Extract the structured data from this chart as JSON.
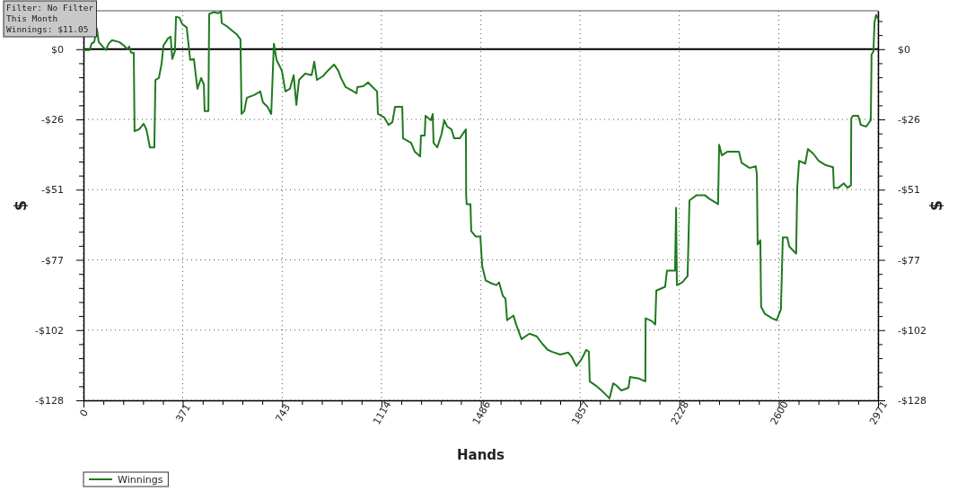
{
  "chart_data": {
    "type": "step",
    "xlabel": "Hands",
    "ylabel": "$",
    "y2label": "$",
    "annotations": [
      "Filter: No Filter",
      "This Month",
      "Winnings: $11.05"
    ],
    "legend": "bottom left",
    "grid": true,
    "line_style": "solid",
    "xlim": [
      0,
      2971
    ],
    "xticks": [
      0,
      {
        "value": 74.3,
        "label": null
      },
      {
        "value": 148.6,
        "label": null
      },
      {
        "value": 222.8,
        "label": null
      },
      {
        "value": 297.1,
        "label": null
      },
      371,
      {
        "value": 445.6,
        "label": null
      },
      {
        "value": 519.9,
        "label": null
      },
      {
        "value": 594.2,
        "label": null
      },
      {
        "value": 668.5,
        "label": null
      },
      743,
      {
        "value": 817.0,
        "label": null
      },
      {
        "value": 891.3,
        "label": null
      },
      {
        "value": 965.6,
        "label": null
      },
      {
        "value": 1039.9,
        "label": null
      },
      1114,
      {
        "value": 1188.4,
        "label": null
      },
      {
        "value": 1262.7,
        "label": null
      },
      {
        "value": 1337.0,
        "label": null
      },
      {
        "value": 1411.2,
        "label": null
      },
      1486,
      {
        "value": 1559.8,
        "label": null
      },
      {
        "value": 1634.1,
        "label": null
      },
      {
        "value": 1708.3,
        "label": null
      },
      {
        "value": 1782.6,
        "label": null
      },
      1857,
      {
        "value": 1931.2,
        "label": null
      },
      {
        "value": 2005.4,
        "label": null
      },
      {
        "value": 2079.7,
        "label": null
      },
      {
        "value": 2154.0,
        "label": null
      },
      2228,
      {
        "value": 2302.6,
        "label": null
      },
      {
        "value": 2376.8,
        "label": null
      },
      {
        "value": 2451.1,
        "label": null
      },
      {
        "value": 2525.4,
        "label": null
      },
      2600,
      {
        "value": 2674.0,
        "label": null
      },
      {
        "value": 2748.2,
        "label": null
      },
      {
        "value": 2822.5,
        "label": null
      },
      {
        "value": 2896.8,
        "label": null
      },
      2971
    ],
    "ylim": [
      -128,
      14
    ],
    "yticks": [
      {
        "value": 10.24,
        "label": null
      },
      {
        "value": 5.12,
        "label": null
      },
      {
        "value": 0,
        "label": "$0"
      },
      {
        "value": -5.12,
        "label": null
      },
      {
        "value": -10.24,
        "label": null
      },
      {
        "value": -15.36,
        "label": null
      },
      {
        "value": -20.48,
        "label": null
      },
      {
        "value": -25.6,
        "label": "-$26"
      },
      {
        "value": -30.72,
        "label": null
      },
      {
        "value": -35.84,
        "label": null
      },
      {
        "value": -40.96,
        "label": null
      },
      {
        "value": -46.08,
        "label": null
      },
      {
        "value": -51.2,
        "label": "-$51"
      },
      {
        "value": -56.32,
        "label": null
      },
      {
        "value": -61.44,
        "label": null
      },
      {
        "value": -66.56,
        "label": null
      },
      {
        "value": -71.68,
        "label": null
      },
      {
        "value": -76.8,
        "label": "-$77"
      },
      {
        "value": -81.92,
        "label": null
      },
      {
        "value": -87.04,
        "label": null
      },
      {
        "value": -92.16,
        "label": null
      },
      {
        "value": -97.28,
        "label": null
      },
      {
        "value": -102.4,
        "label": "-$102"
      },
      {
        "value": -107.52,
        "label": null
      },
      {
        "value": -112.64,
        "label": null
      },
      {
        "value": -117.76,
        "label": null
      },
      {
        "value": -122.88,
        "label": null
      },
      {
        "value": -128,
        "label": "-$128"
      }
    ],
    "y2lim": [
      -128,
      14
    ],
    "y2ticks": [
      {
        "value": 10.24,
        "label": null
      },
      {
        "value": 5.12,
        "label": null
      },
      {
        "value": 0,
        "label": "$0"
      },
      {
        "value": -5.12,
        "label": null
      },
      {
        "value": -10.24,
        "label": null
      },
      {
        "value": -15.36,
        "label": null
      },
      {
        "value": -20.48,
        "label": null
      },
      {
        "value": -25.6,
        "label": "-$26"
      },
      {
        "value": -30.72,
        "label": null
      },
      {
        "value": -35.84,
        "label": null
      },
      {
        "value": -40.96,
        "label": null
      },
      {
        "value": -46.08,
        "label": null
      },
      {
        "value": -51.2,
        "label": "-$51"
      },
      {
        "value": -56.32,
        "label": null
      },
      {
        "value": -61.44,
        "label": null
      },
      {
        "value": -66.56,
        "label": null
      },
      {
        "value": -71.68,
        "label": null
      },
      {
        "value": -76.8,
        "label": "-$77"
      },
      {
        "value": -81.92,
        "label": null
      },
      {
        "value": -87.04,
        "label": null
      },
      {
        "value": -92.16,
        "label": null
      },
      {
        "value": -97.28,
        "label": null
      },
      {
        "value": -102.4,
        "label": "-$102"
      },
      {
        "value": -107.52,
        "label": null
      },
      {
        "value": -112.64,
        "label": null
      },
      {
        "value": -117.76,
        "label": null
      },
      {
        "value": -122.88,
        "label": null
      },
      {
        "value": -128,
        "label": "-$128"
      }
    ],
    "ref_lines": [
      {
        "axis": "y",
        "value": 0,
        "color": "#000000",
        "line_style": "solid"
      }
    ],
    "series": [
      {
        "name": "Winnings",
        "color": "#1f7a1f",
        "x": [
          0,
          23,
          30,
          40,
          50,
          57,
          74,
          84,
          94,
          107,
          134,
          151,
          164,
          171,
          178,
          188,
          191,
          208,
          225,
          235,
          242,
          248,
          265,
          269,
          282,
          292,
          299,
          316,
          326,
          332,
          342,
          346,
          359,
          369,
          386,
          399,
          413,
          420,
          426,
          440,
          450,
          453,
          467,
          470,
          487,
          504,
          514,
          517,
          534,
          554,
          574,
          587,
          591,
          601,
          611,
          638,
          661,
          671,
          688,
          702,
          712,
          722,
          742,
          755,
          772,
          786,
          796,
          806,
          829,
          853,
          863,
          873,
          896,
          913,
          937,
          953,
          963,
          980,
          1004,
          1021,
          1024,
          1047,
          1064,
          1081,
          1098,
          1101,
          1125,
          1141,
          1155,
          1165,
          1192,
          1195,
          1225,
          1239,
          1259,
          1262,
          1276,
          1279,
          1299,
          1306,
          1309,
          1323,
          1339,
          1349,
          1360,
          1376,
          1386,
          1407,
          1430,
          1431,
          1433,
          1447,
          1450,
          1467,
          1484,
          1491,
          1504,
          1524,
          1544,
          1554,
          1568,
          1578,
          1584,
          1608,
          1618,
          1638,
          1652,
          1668,
          1695,
          1715,
          1736,
          1752,
          1783,
          1813,
          1826,
          1843,
          1863,
          1880,
          1890,
          1893,
          1917,
          1937,
          1954,
          1967,
          1981,
          1994,
          2011,
          2038,
          2044,
          2078,
          2101,
          2102,
          2125,
          2138,
          2142,
          2175,
          2182,
          2212,
          2216,
          2219,
          2239,
          2259,
          2266,
          2293,
          2323,
          2340,
          2373,
          2377,
          2387,
          2407,
          2451,
          2461,
          2491,
          2514,
          2518,
          2521,
          2531,
          2534,
          2548,
          2575,
          2592,
          2608,
          2615,
          2632,
          2639,
          2655,
          2665,
          2669,
          2676,
          2699,
          2709,
          2729,
          2749,
          2776,
          2803,
          2806,
          2823,
          2843,
          2857,
          2870,
          2871,
          2877,
          2897,
          2907,
          2927,
          2944,
          2947,
          2954,
          2958,
          2964,
          2971
        ],
        "values": [
          -0.3,
          -0.3,
          2.0,
          2.6,
          7.5,
          2.6,
          0.7,
          -0.3,
          2.0,
          3.3,
          2.6,
          1.3,
          0,
          1.0,
          -1.3,
          -1.3,
          -29.9,
          -29.2,
          -27.2,
          -29.2,
          -32.5,
          -35.8,
          -35.8,
          -11.2,
          -10.5,
          -5.3,
          1.3,
          3.9,
          4.6,
          -3.6,
          -0.7,
          11.8,
          11.5,
          9.2,
          7.9,
          -3.9,
          -3.6,
          -9.5,
          -14.4,
          -10.5,
          -12.8,
          -22.6,
          -22.6,
          12.8,
          13.5,
          13.1,
          13.8,
          9.5,
          8.5,
          6.9,
          5.3,
          3.6,
          -23.6,
          -22.6,
          -17.7,
          -16.7,
          -15.4,
          -19.4,
          -21.0,
          -23.6,
          2.0,
          -3.9,
          -7.9,
          -15.4,
          -14.4,
          -9.5,
          -20.3,
          -11.2,
          -8.9,
          -9.5,
          -4.6,
          -11.2,
          -9.8,
          -7.9,
          -5.6,
          -7.9,
          -10.5,
          -13.8,
          -15.1,
          -16.1,
          -13.8,
          -13.5,
          -12.1,
          -13.8,
          -15.4,
          -23.6,
          -24.9,
          -27.6,
          -26.6,
          -21.0,
          -21.0,
          -32.5,
          -34.1,
          -37.4,
          -39.1,
          -31.5,
          -31.5,
          -24.3,
          -25.9,
          -23.6,
          -34.1,
          -35.8,
          -30.9,
          -25.9,
          -28.2,
          -29.2,
          -32.5,
          -32.5,
          -29.2,
          -53.8,
          -56.5,
          -56.5,
          -66.3,
          -68.3,
          -68.3,
          -79.1,
          -84.3,
          -85.3,
          -86.0,
          -85.0,
          -89.9,
          -90.9,
          -98.8,
          -97.1,
          -100.4,
          -105.7,
          -104.7,
          -103.7,
          -104.7,
          -107.3,
          -109.6,
          -110.3,
          -111.3,
          -110.6,
          -112.2,
          -115.5,
          -112.9,
          -109.6,
          -110.3,
          -121.1,
          -122.7,
          -124.4,
          -126.0,
          -127.3,
          -121.8,
          -122.7,
          -124.4,
          -123.4,
          -119.5,
          -120.1,
          -121.1,
          -98.1,
          -99.1,
          -100.4,
          -88.0,
          -86.6,
          -80.7,
          -80.7,
          -57.8,
          -86.0,
          -85.0,
          -82.7,
          -55.1,
          -53.2,
          -53.2,
          -54.5,
          -56.5,
          -34.8,
          -38.7,
          -37.4,
          -37.4,
          -41.4,
          -43.3,
          -42.7,
          -45.6,
          -71.2,
          -69.6,
          -93.9,
          -96.5,
          -98.1,
          -98.8,
          -94.8,
          -68.6,
          -68.6,
          -71.9,
          -73.5,
          -74.5,
          -50.5,
          -40.7,
          -41.7,
          -36.4,
          -38.1,
          -40.7,
          -42.3,
          -43.0,
          -50.5,
          -50.5,
          -48.9,
          -50.5,
          -49.6,
          -25.3,
          -24.3,
          -24.3,
          -27.6,
          -28.2,
          -25.9,
          -2.0,
          -0.7,
          9.8,
          12.5,
          11.1
        ]
      }
    ]
  }
}
